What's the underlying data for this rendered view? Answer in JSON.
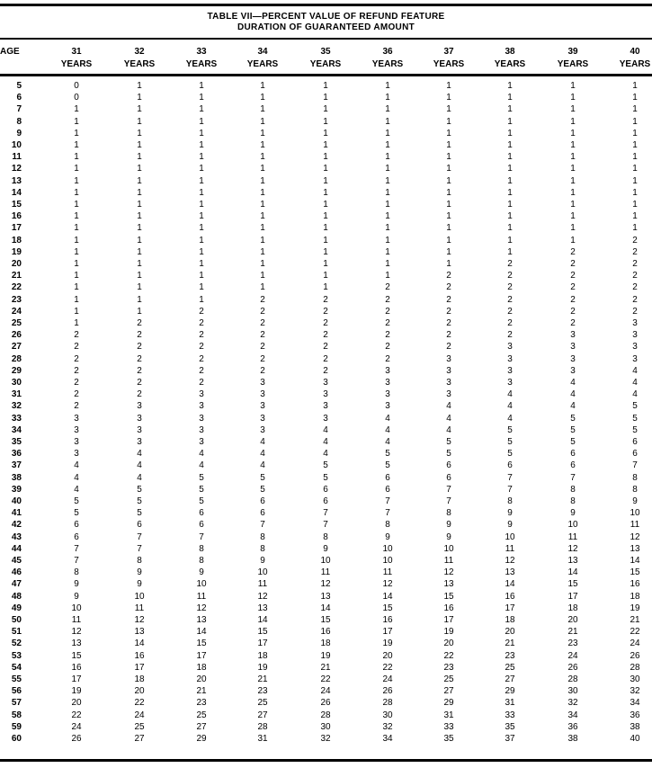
{
  "table": {
    "title_line1": "TABLE VII—PERCENT VALUE OF REFUND FEATURE",
    "title_line2": "DURATION OF GUARANTEED AMOUNT",
    "age_header": "AGE",
    "columns": [
      {
        "number": "31",
        "unit": "YEARS"
      },
      {
        "number": "32",
        "unit": "YEARS"
      },
      {
        "number": "33",
        "unit": "YEARS"
      },
      {
        "number": "34",
        "unit": "YEARS"
      },
      {
        "number": "35",
        "unit": "YEARS"
      },
      {
        "number": "36",
        "unit": "YEARS"
      },
      {
        "number": "37",
        "unit": "YEARS"
      },
      {
        "number": "38",
        "unit": "YEARS"
      },
      {
        "number": "39",
        "unit": "YEARS"
      },
      {
        "number": "40",
        "unit": "YEARS"
      }
    ],
    "rows": [
      {
        "age": "5",
        "values": [
          "0",
          "1",
          "1",
          "1",
          "1",
          "1",
          "1",
          "1",
          "1",
          "1"
        ]
      },
      {
        "age": "6",
        "values": [
          "0",
          "1",
          "1",
          "1",
          "1",
          "1",
          "1",
          "1",
          "1",
          "1"
        ]
      },
      {
        "age": "7",
        "values": [
          "1",
          "1",
          "1",
          "1",
          "1",
          "1",
          "1",
          "1",
          "1",
          "1"
        ]
      },
      {
        "age": "8",
        "values": [
          "1",
          "1",
          "1",
          "1",
          "1",
          "1",
          "1",
          "1",
          "1",
          "1"
        ]
      },
      {
        "age": "9",
        "values": [
          "1",
          "1",
          "1",
          "1",
          "1",
          "1",
          "1",
          "1",
          "1",
          "1"
        ]
      },
      {
        "age": "10",
        "values": [
          "1",
          "1",
          "1",
          "1",
          "1",
          "1",
          "1",
          "1",
          "1",
          "1"
        ]
      },
      {
        "age": "11",
        "values": [
          "1",
          "1",
          "1",
          "1",
          "1",
          "1",
          "1",
          "1",
          "1",
          "1"
        ]
      },
      {
        "age": "12",
        "values": [
          "1",
          "1",
          "1",
          "1",
          "1",
          "1",
          "1",
          "1",
          "1",
          "1"
        ]
      },
      {
        "age": "13",
        "values": [
          "1",
          "1",
          "1",
          "1",
          "1",
          "1",
          "1",
          "1",
          "1",
          "1"
        ]
      },
      {
        "age": "14",
        "values": [
          "1",
          "1",
          "1",
          "1",
          "1",
          "1",
          "1",
          "1",
          "1",
          "1"
        ]
      },
      {
        "age": "15",
        "values": [
          "1",
          "1",
          "1",
          "1",
          "1",
          "1",
          "1",
          "1",
          "1",
          "1"
        ]
      },
      {
        "age": "16",
        "values": [
          "1",
          "1",
          "1",
          "1",
          "1",
          "1",
          "1",
          "1",
          "1",
          "1"
        ]
      },
      {
        "age": "17",
        "values": [
          "1",
          "1",
          "1",
          "1",
          "1",
          "1",
          "1",
          "1",
          "1",
          "1"
        ]
      },
      {
        "age": "18",
        "values": [
          "1",
          "1",
          "1",
          "1",
          "1",
          "1",
          "1",
          "1",
          "1",
          "2"
        ]
      },
      {
        "age": "19",
        "values": [
          "1",
          "1",
          "1",
          "1",
          "1",
          "1",
          "1",
          "1",
          "2",
          "2"
        ]
      },
      {
        "age": "20",
        "values": [
          "1",
          "1",
          "1",
          "1",
          "1",
          "1",
          "1",
          "2",
          "2",
          "2"
        ]
      },
      {
        "age": "21",
        "values": [
          "1",
          "1",
          "1",
          "1",
          "1",
          "1",
          "2",
          "2",
          "2",
          "2"
        ]
      },
      {
        "age": "22",
        "values": [
          "1",
          "1",
          "1",
          "1",
          "1",
          "2",
          "2",
          "2",
          "2",
          "2"
        ]
      },
      {
        "age": "23",
        "values": [
          "1",
          "1",
          "1",
          "2",
          "2",
          "2",
          "2",
          "2",
          "2",
          "2"
        ]
      },
      {
        "age": "24",
        "values": [
          "1",
          "1",
          "2",
          "2",
          "2",
          "2",
          "2",
          "2",
          "2",
          "2"
        ]
      },
      {
        "age": "25",
        "values": [
          "1",
          "2",
          "2",
          "2",
          "2",
          "2",
          "2",
          "2",
          "2",
          "3"
        ]
      },
      {
        "age": "26",
        "values": [
          "2",
          "2",
          "2",
          "2",
          "2",
          "2",
          "2",
          "2",
          "3",
          "3"
        ]
      },
      {
        "age": "27",
        "values": [
          "2",
          "2",
          "2",
          "2",
          "2",
          "2",
          "2",
          "3",
          "3",
          "3"
        ]
      },
      {
        "age": "28",
        "values": [
          "2",
          "2",
          "2",
          "2",
          "2",
          "2",
          "3",
          "3",
          "3",
          "3"
        ]
      },
      {
        "age": "29",
        "values": [
          "2",
          "2",
          "2",
          "2",
          "2",
          "3",
          "3",
          "3",
          "3",
          "4"
        ]
      },
      {
        "age": "30",
        "values": [
          "2",
          "2",
          "2",
          "3",
          "3",
          "3",
          "3",
          "3",
          "4",
          "4"
        ]
      },
      {
        "age": "31",
        "values": [
          "2",
          "2",
          "3",
          "3",
          "3",
          "3",
          "3",
          "4",
          "4",
          "4"
        ]
      },
      {
        "age": "32",
        "values": [
          "2",
          "3",
          "3",
          "3",
          "3",
          "3",
          "4",
          "4",
          "4",
          "5"
        ]
      },
      {
        "age": "33",
        "values": [
          "3",
          "3",
          "3",
          "3",
          "3",
          "4",
          "4",
          "4",
          "5",
          "5"
        ]
      },
      {
        "age": "34",
        "values": [
          "3",
          "3",
          "3",
          "3",
          "4",
          "4",
          "4",
          "5",
          "5",
          "5"
        ]
      },
      {
        "age": "35",
        "values": [
          "3",
          "3",
          "3",
          "4",
          "4",
          "4",
          "5",
          "5",
          "5",
          "6"
        ]
      },
      {
        "age": "36",
        "values": [
          "3",
          "4",
          "4",
          "4",
          "4",
          "5",
          "5",
          "5",
          "6",
          "6"
        ]
      },
      {
        "age": "37",
        "values": [
          "4",
          "4",
          "4",
          "4",
          "5",
          "5",
          "6",
          "6",
          "6",
          "7"
        ]
      },
      {
        "age": "38",
        "values": [
          "4",
          "4",
          "5",
          "5",
          "5",
          "6",
          "6",
          "7",
          "7",
          "8"
        ]
      },
      {
        "age": "39",
        "values": [
          "4",
          "5",
          "5",
          "5",
          "6",
          "6",
          "7",
          "7",
          "8",
          "8"
        ]
      },
      {
        "age": "40",
        "values": [
          "5",
          "5",
          "5",
          "6",
          "6",
          "7",
          "7",
          "8",
          "8",
          "9"
        ]
      },
      {
        "age": "41",
        "values": [
          "5",
          "5",
          "6",
          "6",
          "7",
          "7",
          "8",
          "9",
          "9",
          "10"
        ]
      },
      {
        "age": "42",
        "values": [
          "6",
          "6",
          "6",
          "7",
          "7",
          "8",
          "9",
          "9",
          "10",
          "11"
        ]
      },
      {
        "age": "43",
        "values": [
          "6",
          "7",
          "7",
          "8",
          "8",
          "9",
          "9",
          "10",
          "11",
          "12"
        ]
      },
      {
        "age": "44",
        "values": [
          "7",
          "7",
          "8",
          "8",
          "9",
          "10",
          "10",
          "11",
          "12",
          "13"
        ]
      },
      {
        "age": "45",
        "values": [
          "7",
          "8",
          "8",
          "9",
          "10",
          "10",
          "11",
          "12",
          "13",
          "14"
        ]
      },
      {
        "age": "46",
        "values": [
          "8",
          "9",
          "9",
          "10",
          "11",
          "11",
          "12",
          "13",
          "14",
          "15"
        ]
      },
      {
        "age": "47",
        "values": [
          "9",
          "9",
          "10",
          "11",
          "12",
          "12",
          "13",
          "14",
          "15",
          "16"
        ]
      },
      {
        "age": "48",
        "values": [
          "9",
          "10",
          "11",
          "12",
          "13",
          "14",
          "15",
          "16",
          "17",
          "18"
        ]
      },
      {
        "age": "49",
        "values": [
          "10",
          "11",
          "12",
          "13",
          "14",
          "15",
          "16",
          "17",
          "18",
          "19"
        ]
      },
      {
        "age": "50",
        "values": [
          "11",
          "12",
          "13",
          "14",
          "15",
          "16",
          "17",
          "18",
          "20",
          "21"
        ]
      },
      {
        "age": "51",
        "values": [
          "12",
          "13",
          "14",
          "15",
          "16",
          "17",
          "19",
          "20",
          "21",
          "22"
        ]
      },
      {
        "age": "52",
        "values": [
          "13",
          "14",
          "15",
          "17",
          "18",
          "19",
          "20",
          "21",
          "23",
          "24"
        ]
      },
      {
        "age": "53",
        "values": [
          "15",
          "16",
          "17",
          "18",
          "19",
          "20",
          "22",
          "23",
          "24",
          "26"
        ]
      },
      {
        "age": "54",
        "values": [
          "16",
          "17",
          "18",
          "19",
          "21",
          "22",
          "23",
          "25",
          "26",
          "28"
        ]
      },
      {
        "age": "55",
        "values": [
          "17",
          "18",
          "20",
          "21",
          "22",
          "24",
          "25",
          "27",
          "28",
          "30"
        ]
      },
      {
        "age": "56",
        "values": [
          "19",
          "20",
          "21",
          "23",
          "24",
          "26",
          "27",
          "29",
          "30",
          "32"
        ]
      },
      {
        "age": "57",
        "values": [
          "20",
          "22",
          "23",
          "25",
          "26",
          "28",
          "29",
          "31",
          "32",
          "34"
        ]
      },
      {
        "age": "58",
        "values": [
          "22",
          "24",
          "25",
          "27",
          "28",
          "30",
          "31",
          "33",
          "34",
          "36"
        ]
      },
      {
        "age": "59",
        "values": [
          "24",
          "25",
          "27",
          "28",
          "30",
          "32",
          "33",
          "35",
          "36",
          "38"
        ]
      },
      {
        "age": "60",
        "values": [
          "26",
          "27",
          "29",
          "31",
          "32",
          "34",
          "35",
          "37",
          "38",
          "40"
        ]
      }
    ]
  }
}
